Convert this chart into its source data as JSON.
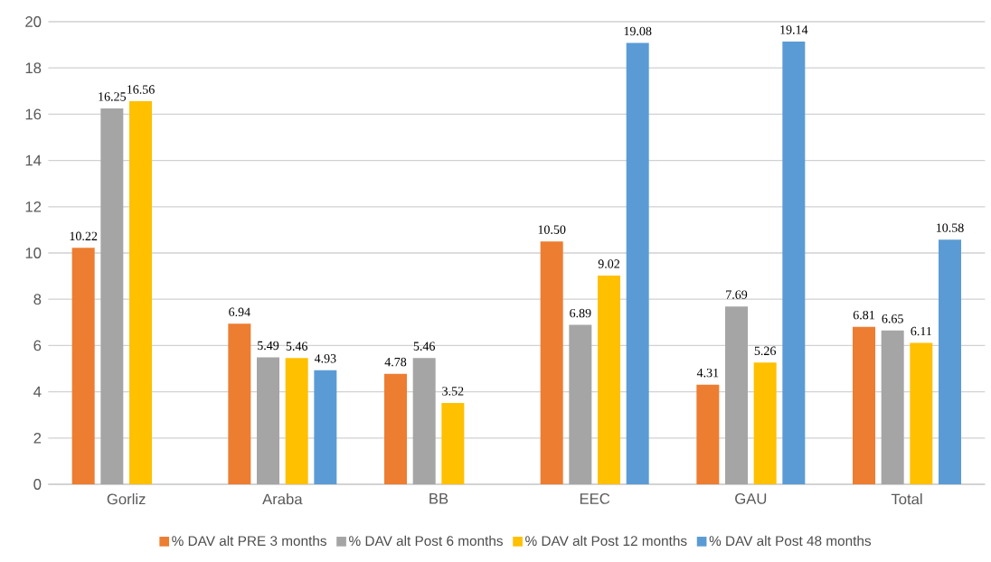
{
  "chart_data": {
    "type": "bar",
    "categories": [
      "Gorliz",
      "Araba",
      "BB",
      "EEC",
      "GAU",
      "Total"
    ],
    "series": [
      {
        "name": "% DAV alt PRE 3 months",
        "color": "#ed7d31",
        "values": [
          10.22,
          6.94,
          4.78,
          10.5,
          4.31,
          6.81
        ],
        "value_labels": [
          "10.22",
          "6.94",
          "4.78",
          "10.50",
          "4.31",
          "6.81"
        ]
      },
      {
        "name": "% DAV alt Post 6 months",
        "color": "#a5a5a5",
        "values": [
          16.25,
          5.49,
          5.46,
          6.89,
          7.69,
          6.65
        ],
        "value_labels": [
          "16.25",
          "5.49",
          "5.46",
          "6.89",
          "7.69",
          "6.65"
        ]
      },
      {
        "name": "% DAV alt Post 12 months",
        "color": "#ffc000",
        "values": [
          16.56,
          5.46,
          3.52,
          9.02,
          5.26,
          6.11
        ],
        "value_labels": [
          "16.56",
          "5.46",
          "3.52",
          "9.02",
          "5.26",
          "6.11"
        ]
      },
      {
        "name": "% DAV alt Post 48 months",
        "color": "#5b9bd5",
        "values": [
          null,
          4.93,
          null,
          19.08,
          19.14,
          10.58
        ],
        "value_labels": [
          null,
          "4.93",
          null,
          "19.08",
          "19.14",
          "10.58"
        ]
      }
    ],
    "ylim": [
      0,
      20
    ],
    "yticks": [
      0,
      2,
      4,
      6,
      8,
      10,
      12,
      14,
      16,
      18,
      20
    ],
    "grid": "y",
    "legend": "bottom"
  }
}
